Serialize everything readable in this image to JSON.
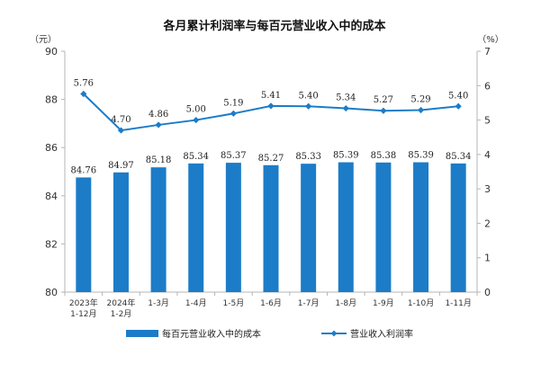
{
  "chart_data": {
    "type": "bar",
    "title": "各月累计利润率与每百元营业收入中的成本",
    "left_unit": "（元）",
    "right_unit": "（%）",
    "categories": [
      [
        "2023年",
        "1-12月"
      ],
      [
        "2024年",
        "1-2月"
      ],
      [
        "1-3月"
      ],
      [
        "1-4月"
      ],
      [
        "1-5月"
      ],
      [
        "1-6月"
      ],
      [
        "1-7月"
      ],
      [
        "1-8月"
      ],
      [
        "1-9月"
      ],
      [
        "1-10月"
      ],
      [
        "1-11月"
      ]
    ],
    "series": [
      {
        "name": "每百元营业收入中的成本",
        "type": "bar",
        "axis": "left",
        "color": "#1c7cc8",
        "values": [
          84.76,
          84.97,
          85.18,
          85.34,
          85.37,
          85.27,
          85.33,
          85.39,
          85.38,
          85.39,
          85.34
        ],
        "labels": [
          "84.76",
          "84.97",
          "85.18",
          "85.34",
          "85.37",
          "85.27",
          "85.33",
          "85.39",
          "85.38",
          "85.39",
          "85.34"
        ]
      },
      {
        "name": "营业收入利润率",
        "type": "line",
        "axis": "right",
        "color": "#1c7cc8",
        "values": [
          5.76,
          4.7,
          4.86,
          5.0,
          5.19,
          5.41,
          5.4,
          5.34,
          5.27,
          5.29,
          5.4
        ],
        "labels": [
          "5.76",
          "4.70",
          "4.86",
          "5.00",
          "5.19",
          "5.41",
          "5.40",
          "5.34",
          "5.27",
          "5.29",
          "5.40"
        ]
      }
    ],
    "ylim_left": [
      80,
      90
    ],
    "yticks_left": [
      80,
      82,
      84,
      86,
      88,
      90
    ],
    "ylim_right": [
      0,
      7
    ],
    "yticks_right": [
      0,
      1,
      2,
      3,
      4,
      5,
      6,
      7
    ],
    "grid": false,
    "legend_position": "bottom"
  }
}
